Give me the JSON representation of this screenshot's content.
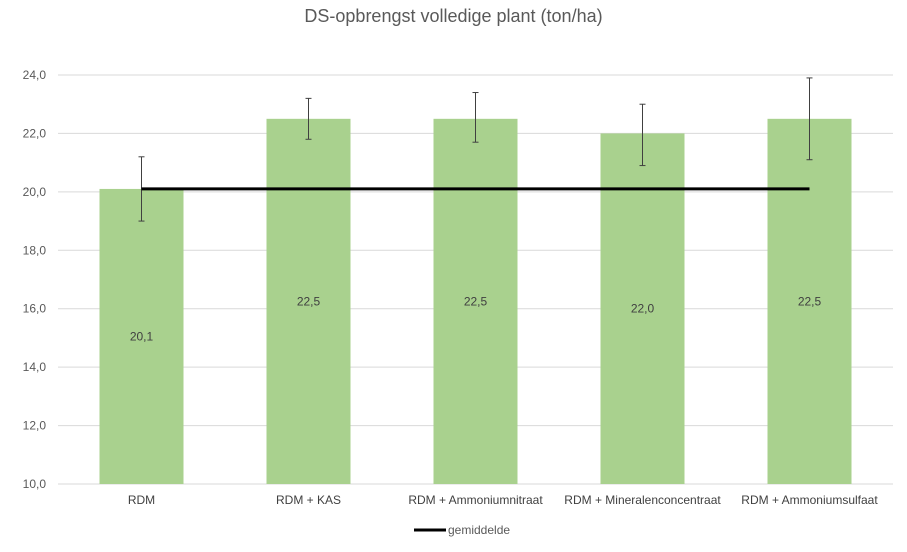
{
  "chart_data": {
    "type": "bar",
    "title": "DS-opbrengst volledige plant (ton/ha)",
    "xlabel": "",
    "ylabel": "",
    "categories": [
      "RDM",
      "RDM + KAS",
      "RDM + Ammoniumnitraat",
      "RDM + Mineralenconcentraat",
      "RDM + Ammoniumsulfaat"
    ],
    "values": [
      20.1,
      22.5,
      22.5,
      22.0,
      22.5
    ],
    "data_labels": [
      "20,1",
      "22,5",
      "22,5",
      "22,0",
      "22,5"
    ],
    "error_bars": [
      {
        "low": 19.0,
        "high": 21.2
      },
      {
        "low": 21.8,
        "high": 23.2
      },
      {
        "low": 21.7,
        "high": 23.4
      },
      {
        "low": 20.9,
        "high": 23.0
      },
      {
        "low": 21.1,
        "high": 23.9
      }
    ],
    "reference_line": {
      "name": "gemiddelde",
      "value": 20.1
    },
    "ylim": [
      10.0,
      24.0
    ],
    "yticks": [
      10.0,
      12.0,
      14.0,
      16.0,
      18.0,
      20.0,
      22.0,
      24.0
    ],
    "ytick_labels": [
      "10,0",
      "12,0",
      "14,0",
      "16,0",
      "18,0",
      "20,0",
      "22,0",
      "24,0"
    ],
    "grid": true,
    "legend_position": "bottom",
    "colors": {
      "bar": "#a9d18e",
      "line": "#000000",
      "grid": "#d9d9d9",
      "error_bar": "#404040"
    }
  }
}
